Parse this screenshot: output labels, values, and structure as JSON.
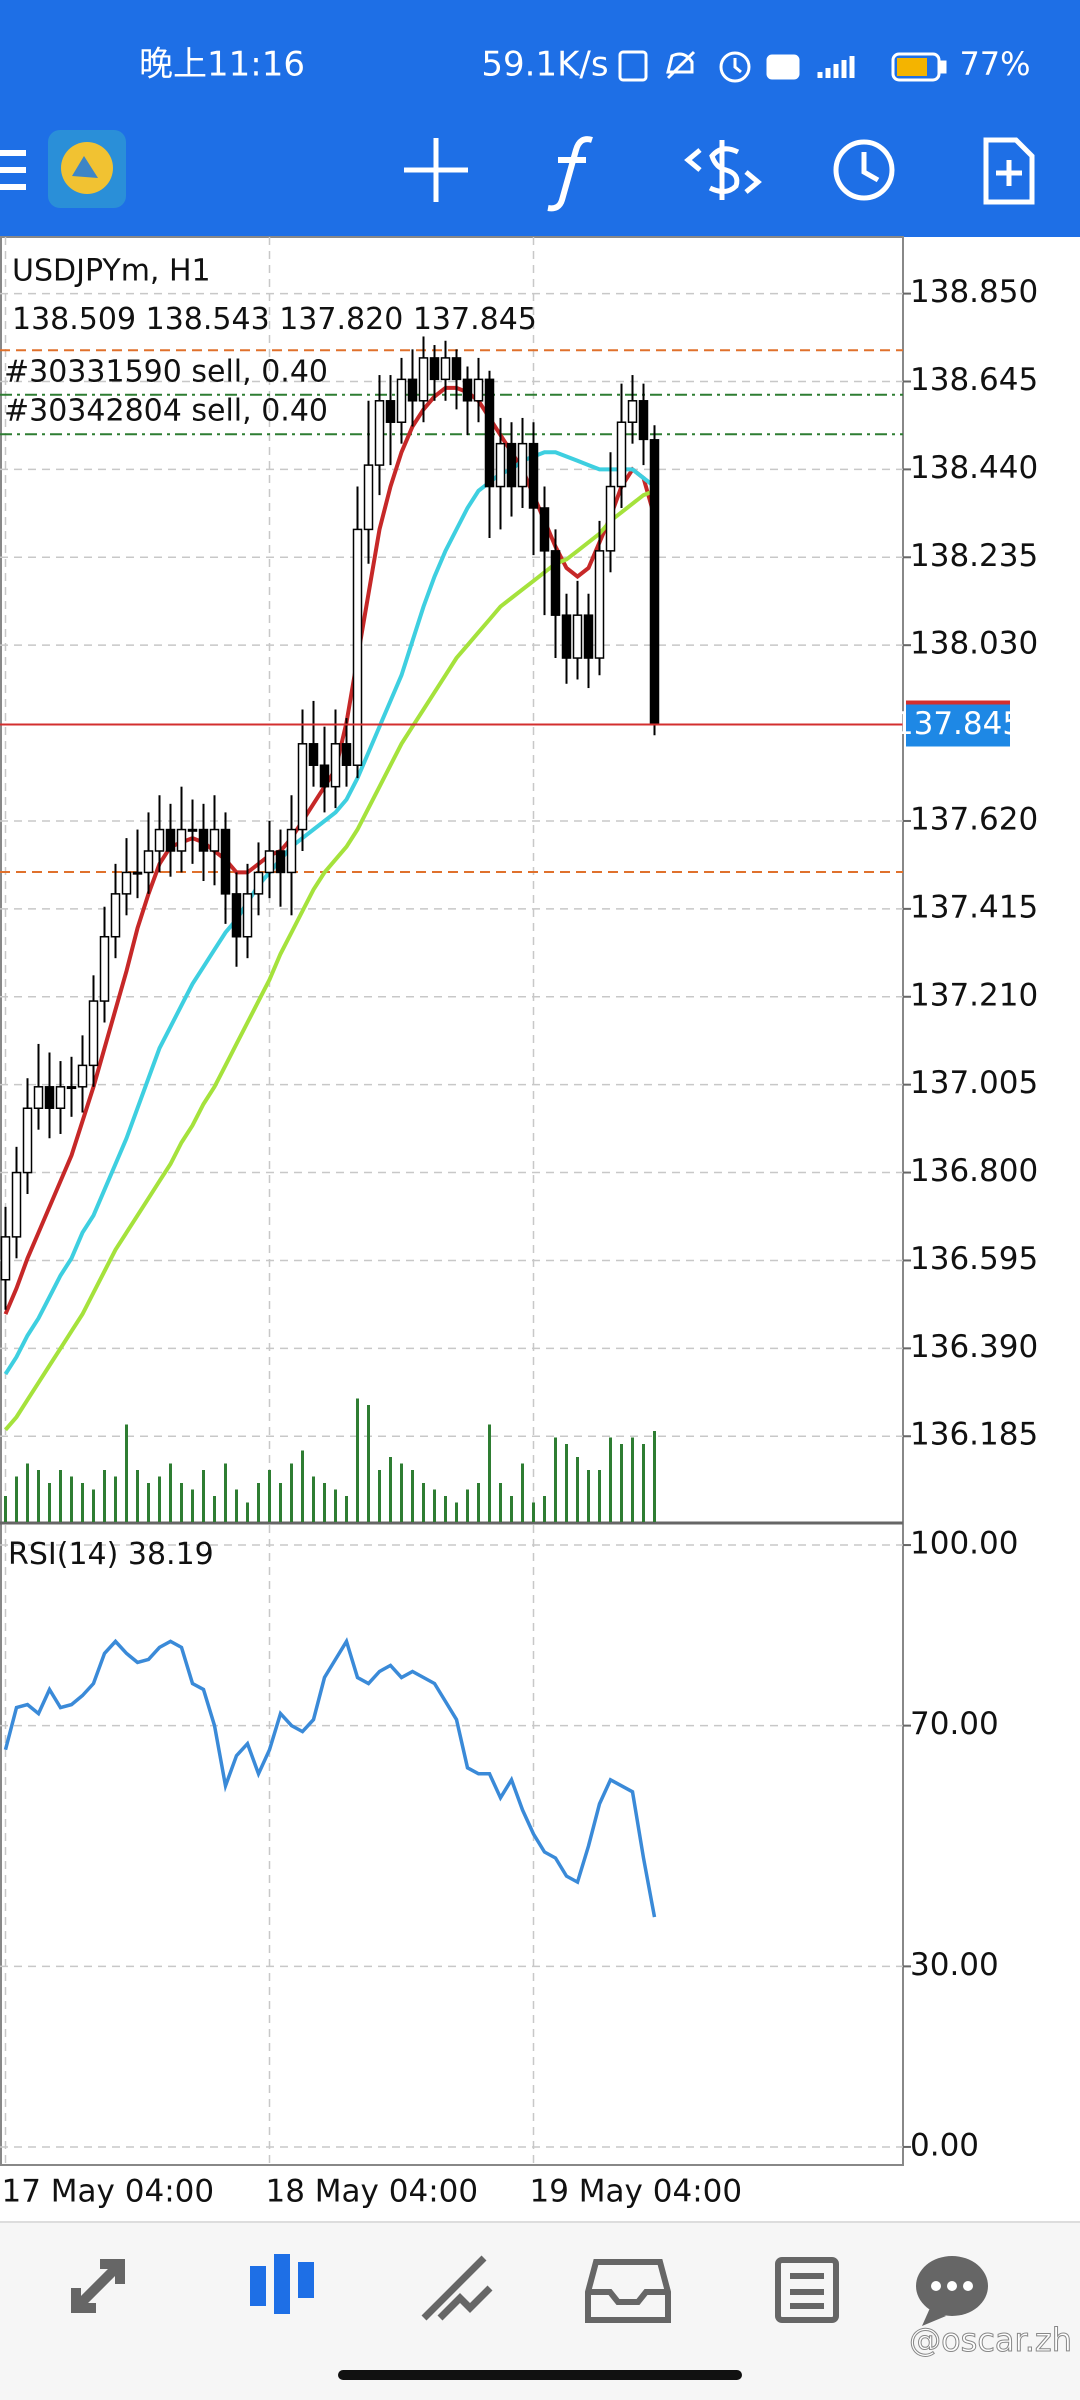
{
  "status_bar": {
    "time": "晚上11:16",
    "speed": "59.1K/s",
    "battery": "77%"
  },
  "watermark": "@oscar.zh",
  "chart_data": [
    {
      "type": "candlestick",
      "title": "USDJPYm, H1",
      "categories": [
        "17 May 04:00",
        null,
        null,
        null,
        null,
        null,
        null,
        null,
        null,
        null,
        null,
        null,
        null,
        null,
        null,
        null,
        null,
        null,
        null,
        null,
        null,
        null,
        null,
        null,
        "18 May 04:00",
        null,
        null,
        null,
        null,
        null,
        null,
        null,
        null,
        null,
        null,
        null,
        null,
        null,
        null,
        null,
        null,
        null,
        null,
        null,
        null,
        null,
        null,
        null,
        "19 May 04:00",
        null,
        null,
        null,
        null,
        null,
        null,
        null,
        null,
        null,
        null,
        null
      ],
      "open": [
        136.55,
        136.65,
        136.8,
        136.95,
        137,
        136.95,
        137,
        137,
        137.05,
        137.2,
        137.35,
        137.45,
        137.5,
        137.5,
        137.55,
        137.6,
        137.55,
        137.6,
        137.6,
        137.55,
        137.6,
        137.45,
        137.35,
        137.45,
        137.5,
        137.55,
        137.5,
        137.6,
        137.8,
        137.75,
        137.7,
        137.8,
        137.75,
        138.3,
        138.45,
        138.6,
        138.55,
        138.65,
        138.6,
        138.7,
        138.65,
        138.7,
        138.65,
        138.6,
        138.65,
        138.4,
        138.5,
        138.4,
        138.5,
        138.35,
        138.25,
        138.1,
        138,
        138.1,
        138,
        138.25,
        138.4,
        138.55,
        138.6,
        138.509
      ],
      "high": [
        136.72,
        136.86,
        137.02,
        137.1,
        137.08,
        137.06,
        137.07,
        137.12,
        137.26,
        137.42,
        137.52,
        137.58,
        137.6,
        137.64,
        137.68,
        137.66,
        137.7,
        137.67,
        137.66,
        137.68,
        137.64,
        137.5,
        137.52,
        137.57,
        137.62,
        137.6,
        137.68,
        137.88,
        137.9,
        137.84,
        137.88,
        137.86,
        138.4,
        138.6,
        138.66,
        138.66,
        138.7,
        138.72,
        138.75,
        138.73,
        138.74,
        138.72,
        138.68,
        138.7,
        138.67,
        138.56,
        138.55,
        138.56,
        138.55,
        138.4,
        138.3,
        138.15,
        138.18,
        138.15,
        138.32,
        138.48,
        138.64,
        138.66,
        138.64,
        138.543
      ],
      "low": [
        136.48,
        136.6,
        136.75,
        136.9,
        136.88,
        136.89,
        136.93,
        136.94,
        137,
        137.15,
        137.3,
        137.4,
        137.44,
        137.45,
        137.5,
        137.49,
        137.5,
        137.52,
        137.48,
        137.47,
        137.38,
        137.28,
        137.3,
        137.4,
        137.44,
        137.42,
        137.4,
        137.55,
        137.7,
        137.64,
        137.65,
        137.7,
        137.72,
        138.22,
        138.38,
        138.45,
        138.5,
        138.54,
        138.55,
        138.6,
        138.6,
        138.58,
        138.52,
        138.55,
        138.28,
        138.3,
        138.33,
        138.35,
        138.24,
        138.1,
        138,
        137.94,
        137.95,
        137.93,
        137.96,
        138.2,
        138.35,
        138.5,
        138.45,
        137.82
      ],
      "low_labels": [
        null,
        null,
        null,
        null,
        null,
        null,
        null,
        null,
        null,
        null,
        null,
        null,
        null,
        null,
        null,
        null,
        null,
        null,
        null,
        null,
        null,
        null,
        null,
        null,
        null,
        null,
        null,
        null,
        null,
        null,
        null,
        null,
        null,
        null,
        null,
        null,
        null,
        null,
        null,
        null,
        null,
        null,
        null,
        null,
        null,
        null,
        null,
        null,
        null,
        null,
        null,
        null,
        null,
        null,
        null,
        null,
        null,
        null,
        null,
        "137.820"
      ],
      "close": [
        136.65,
        136.8,
        136.95,
        137,
        136.95,
        137,
        137,
        137.05,
        137.2,
        137.35,
        137.45,
        137.5,
        137.5,
        137.55,
        137.6,
        137.55,
        137.6,
        137.6,
        137.55,
        137.6,
        137.45,
        137.35,
        137.45,
        137.5,
        137.55,
        137.5,
        137.6,
        137.8,
        137.75,
        137.7,
        137.8,
        137.75,
        138.3,
        138.45,
        138.6,
        138.55,
        138.65,
        138.6,
        138.7,
        138.65,
        138.7,
        138.65,
        138.6,
        138.65,
        138.4,
        138.5,
        138.4,
        138.5,
        138.35,
        138.25,
        138.1,
        138,
        138.1,
        138,
        138.25,
        138.4,
        138.55,
        138.6,
        138.51,
        137.845
      ],
      "up_color": "#ffffff",
      "down_color": "#000000",
      "price_color": "#1e88e5",
      "price_line_color": "#d32f2f",
      "moving_averages": [
        {
          "color": "#c62828",
          "values": [
            136.47,
            136.53,
            136.6,
            136.66,
            136.72,
            136.78,
            136.84,
            136.92,
            137,
            137.09,
            137.18,
            137.27,
            137.37,
            137.45,
            137.52,
            137.56,
            137.57,
            137.58,
            137.57,
            137.55,
            137.53,
            137.5,
            137.5,
            137.52,
            137.54,
            137.55,
            137.58,
            137.62,
            137.66,
            137.7,
            137.74,
            137.85,
            138,
            138.15,
            138.3,
            138.4,
            138.48,
            138.54,
            138.58,
            138.61,
            138.63,
            138.63,
            138.62,
            138.6,
            138.56,
            138.52,
            138.48,
            138.44,
            138.38,
            138.32,
            138.26,
            138.21,
            138.19,
            138.21,
            138.27,
            138.33,
            138.4,
            138.44,
            138.42,
            138.33
          ]
        },
        {
          "color": "#3ecfe0",
          "values": [
            136.33,
            136.37,
            136.42,
            136.46,
            136.51,
            136.56,
            136.6,
            136.66,
            136.7,
            136.76,
            136.82,
            136.88,
            136.95,
            137.02,
            137.09,
            137.14,
            137.19,
            137.24,
            137.28,
            137.32,
            137.36,
            137.39,
            137.43,
            137.47,
            137.5,
            137.53,
            137.56,
            137.58,
            137.6,
            137.62,
            137.64,
            137.67,
            137.72,
            137.78,
            137.84,
            137.9,
            137.96,
            138.04,
            138.12,
            138.19,
            138.25,
            138.3,
            138.35,
            138.39,
            138.41,
            138.43,
            138.44,
            138.46,
            138.47,
            138.48,
            138.48,
            138.47,
            138.46,
            138.45,
            138.44,
            138.44,
            138.44,
            138.44,
            138.42,
            138.4
          ]
        },
        {
          "color": "#a5e23c",
          "values": [
            136.2,
            136.23,
            136.27,
            136.31,
            136.35,
            136.39,
            136.43,
            136.47,
            136.52,
            136.57,
            136.62,
            136.66,
            136.7,
            136.74,
            136.78,
            136.82,
            136.87,
            136.91,
            136.96,
            137,
            137.05,
            137.1,
            137.15,
            137.2,
            137.25,
            137.31,
            137.36,
            137.41,
            137.46,
            137.5,
            137.53,
            137.56,
            137.6,
            137.65,
            137.7,
            137.75,
            137.8,
            137.84,
            137.88,
            137.92,
            137.96,
            138,
            138.03,
            138.06,
            138.09,
            138.12,
            138.14,
            138.16,
            138.18,
            138.2,
            138.22,
            138.23,
            138.25,
            138.27,
            138.29,
            138.32,
            138.34,
            138.36,
            138.38,
            138.39
          ]
        }
      ],
      "volume": {
        "color": "#2e7d32",
        "ylim": [
          0,
          100
        ],
        "values": [
          20,
          35,
          45,
          40,
          30,
          40,
          35,
          30,
          25,
          40,
          35,
          75,
          40,
          30,
          35,
          45,
          30,
          25,
          40,
          20,
          45,
          25,
          15,
          30,
          40,
          30,
          45,
          55,
          35,
          30,
          25,
          20,
          95,
          90,
          40,
          50,
          45,
          40,
          30,
          25,
          20,
          15,
          25,
          30,
          75,
          30,
          20,
          45,
          15,
          20,
          65,
          60,
          50,
          40,
          40,
          65,
          60,
          65,
          60,
          70
        ]
      },
      "orders": [
        {
          "label": "#30331590 sell, 0.40",
          "price": 138.614,
          "color": "#2e7d32"
        },
        {
          "label": "#30342804 sell, 0.40",
          "price": 138.522,
          "color": "#2e7d32"
        }
      ],
      "levels": [
        {
          "price": 138.718,
          "color": "#e0712c"
        },
        {
          "price": 137.501,
          "color": "#e0712c"
        }
      ],
      "ylim": [
        135.985,
        138.982
      ],
      "yticks": [
        {
          "value": 136.185,
          "label": "136.185"
        },
        {
          "value": 136.39,
          "label": "136.390"
        },
        {
          "value": 136.595,
          "label": "136.595"
        },
        {
          "value": 136.8,
          "label": "136.800"
        },
        {
          "value": 137.005,
          "label": "137.005"
        },
        {
          "value": 137.21,
          "label": "137.210"
        },
        {
          "value": 137.415,
          "label": "137.415"
        },
        {
          "value": 137.62,
          "label": "137.620"
        },
        {
          "value": 138.03,
          "label": "138.030"
        },
        {
          "value": 138.235,
          "label": "138.235"
        },
        {
          "value": 138.44,
          "label": "138.440"
        },
        {
          "value": 138.645,
          "label": "138.645"
        },
        {
          "value": 138.85,
          "label": "138.850"
        }
      ],
      "grid": true
    },
    {
      "type": "line",
      "title": "RSI(14)",
      "series": [
        {
          "color": "#3a8ad8",
          "values": [
            66,
            73,
            73.5,
            72,
            76,
            73,
            73.5,
            75,
            77,
            82,
            84,
            82,
            80.5,
            81,
            83,
            84,
            83,
            77,
            76,
            70,
            60,
            65,
            67,
            62,
            66,
            72,
            70,
            69,
            71,
            78,
            81,
            84,
            78,
            77,
            79,
            80,
            78,
            79,
            78,
            77,
            74,
            71,
            63,
            62,
            62,
            58,
            61,
            56,
            52,
            49,
            48,
            45,
            44,
            50,
            57,
            61,
            60,
            59,
            48,
            38.19
          ]
        }
      ],
      "ylim": [
        -3,
        103
      ],
      "yticks": [
        {
          "value": 0,
          "label": "0.00"
        },
        {
          "value": 30,
          "label": "30.00"
        },
        {
          "value": 70,
          "label": "70.00"
        },
        {
          "value": 100,
          "label": "100.00"
        }
      ],
      "grid": true
    }
  ]
}
